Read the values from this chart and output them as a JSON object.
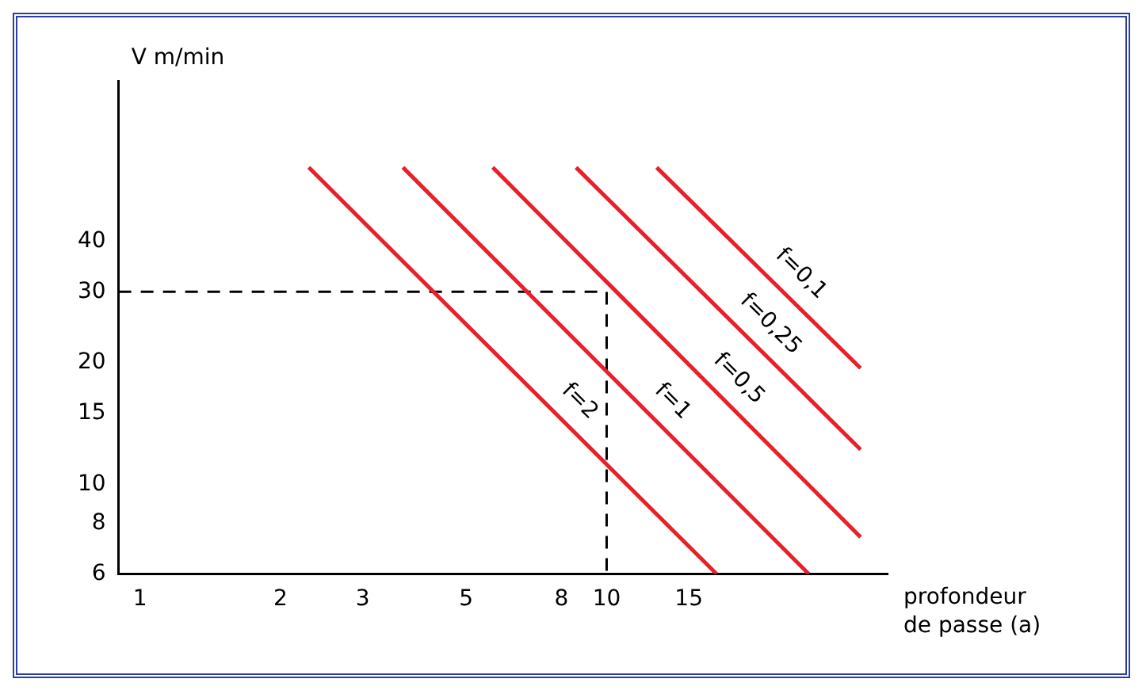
{
  "chart_data": {
    "type": "line",
    "xlabel": "profondeur de passe (a)",
    "ylabel": "V m/min",
    "log": "xy",
    "xlim": [
      0.9,
      40
    ],
    "xticks": [
      1,
      2,
      3,
      5,
      8,
      10,
      15
    ],
    "ylim": [
      6,
      100
    ],
    "yticks": [
      6,
      8,
      10,
      15,
      20,
      30,
      40
    ],
    "grid": false,
    "legend": false,
    "marker": "none",
    "series": [
      {
        "name": "f=2",
        "color": "#e8202a",
        "x": [
          2.3,
          17.2
        ],
        "values": [
          61,
          6
        ]
      },
      {
        "name": "f=1",
        "color": "#e8202a",
        "x": [
          3.66,
          27.1
        ],
        "values": [
          61,
          6
        ]
      },
      {
        "name": "f=0,5",
        "color": "#e8202a",
        "x": [
          5.7,
          35
        ],
        "values": [
          61,
          7.4
        ]
      },
      {
        "name": "f=0,25",
        "color": "#e8202a",
        "x": [
          8.6,
          35
        ],
        "values": [
          61,
          12.2
        ]
      },
      {
        "name": "f=0,1",
        "color": "#e8202a",
        "x": [
          12.8,
          35
        ],
        "values": [
          61,
          19.4
        ]
      },
      {
        "color": "#000000",
        "line_style": "dashed",
        "x": [
          0.9,
          10,
          10
        ],
        "values": [
          30,
          30,
          6
        ]
      }
    ]
  }
}
